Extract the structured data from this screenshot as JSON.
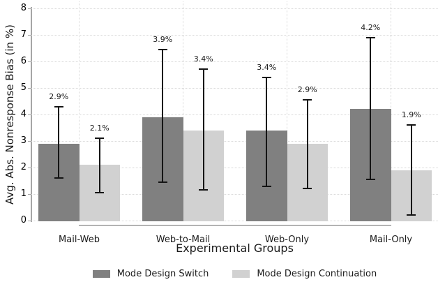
{
  "chart_data": {
    "type": "bar",
    "title": "",
    "xlabel": "Experimental Groups",
    "ylabel": "Avg. Abs. Nonresponse Bias (in %)",
    "ylim": [
      0,
      8
    ],
    "yticks": [
      0,
      1,
      2,
      3,
      4,
      5,
      6,
      7,
      8
    ],
    "grid": {
      "horizontal": "dotted light-gray at each integer",
      "vertical": "dotted light-gray at each group center"
    },
    "legend_position": "bottom-center",
    "categories": [
      "Mail-Web",
      "Web-to-Mail",
      "Web-Only",
      "Mail-Only"
    ],
    "series": [
      {
        "name": "Mode Design Switch",
        "color": "#808080",
        "values": [
          2.9,
          3.9,
          3.4,
          4.2
        ],
        "data_labels": [
          "2.9%",
          "3.9%",
          "3.4%",
          "4.2%"
        ],
        "ci_low": [
          1.6,
          1.45,
          1.3,
          1.55
        ],
        "ci_high": [
          4.3,
          6.45,
          5.4,
          6.9
        ]
      },
      {
        "name": "Mode Design Continuation",
        "color": "#d1d1d1",
        "values": [
          2.1,
          3.4,
          2.9,
          1.9
        ],
        "data_labels": [
          "2.1%",
          "3.4%",
          "2.9%",
          "1.9%"
        ],
        "ci_low": [
          1.05,
          1.15,
          1.2,
          0.2
        ],
        "ci_high": [
          3.1,
          5.7,
          4.55,
          3.6
        ]
      }
    ],
    "error_bar_color": "#141414",
    "axis_color": "#a6a6a6",
    "gridline_color": "#d9d9d9"
  }
}
